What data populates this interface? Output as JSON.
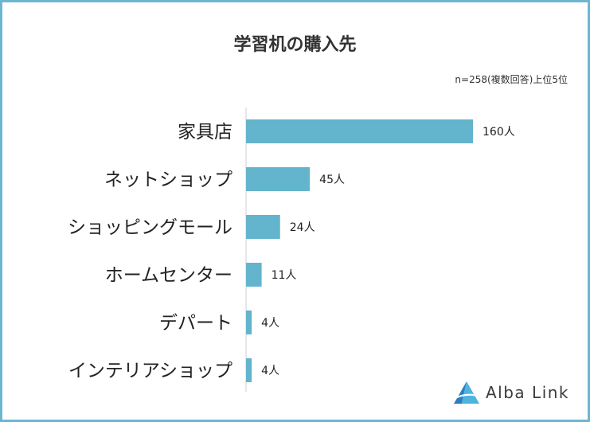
{
  "title": "学習机の購入先",
  "note": "n=258(複数回答)上位5位",
  "logo_text": "Alba Link",
  "colors": {
    "bar": "#63b4cd",
    "frame": "#6cb6cf",
    "axis": "#cfcfcf"
  },
  "chart_data": {
    "type": "bar",
    "orientation": "horizontal",
    "title": "学習机の購入先",
    "categories": [
      "家具店",
      "ネットショップ",
      "ショッピングモール",
      "ホームセンター",
      "デパート",
      "インテリアショップ"
    ],
    "values": [
      160,
      45,
      24,
      11,
      4,
      4
    ],
    "value_labels": [
      "160人",
      "45人",
      "24人",
      "11人",
      "4人",
      "4人"
    ],
    "unit": "人",
    "xlim": [
      0,
      160
    ],
    "grid": false,
    "legend": "none"
  }
}
